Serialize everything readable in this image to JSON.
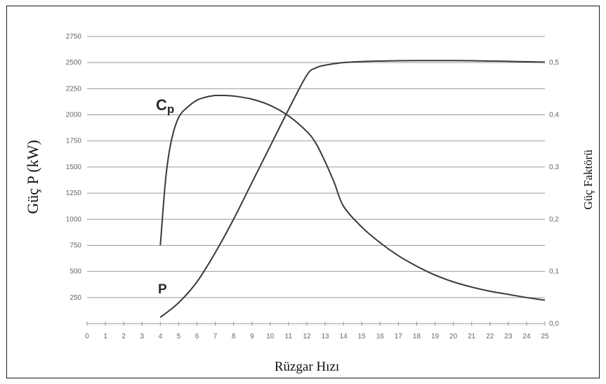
{
  "chart_data": {
    "type": "line",
    "xlabel": "Rüzgar Hızı",
    "ylabel_left": "Güç  P (kW)",
    "ylabel_right": "Güç Faktörü",
    "xlim": [
      0,
      25
    ],
    "x_ticks": [
      0,
      1,
      2,
      3,
      4,
      5,
      6,
      7,
      8,
      9,
      10,
      11,
      12,
      13,
      14,
      15,
      16,
      17,
      18,
      19,
      20,
      21,
      22,
      23,
      24,
      25
    ],
    "ylim_left": [
      0,
      2750
    ],
    "y_ticks_left": [
      250,
      500,
      750,
      1000,
      1250,
      1500,
      1750,
      2000,
      2250,
      2500,
      2750
    ],
    "ylim_right": [
      0,
      0.55
    ],
    "y_ticks_right": [
      "0,0",
      "0,1",
      "0,2",
      "0,3",
      "0,4",
      "0,5"
    ],
    "y_ticks_right_values": [
      0,
      0.1,
      0.2,
      0.3,
      0.4,
      0.5
    ],
    "grid": "horizontal",
    "series": [
      {
        "name": "P",
        "axis": "left",
        "x": [
          4,
          5,
          6,
          7,
          8,
          9,
          10,
          11,
          12,
          12.5,
          13,
          14,
          15,
          16,
          17,
          18,
          19,
          20,
          21,
          22,
          23,
          24,
          25
        ],
        "values": [
          60,
          200,
          400,
          680,
          1000,
          1350,
          1700,
          2050,
          2380,
          2450,
          2475,
          2500,
          2510,
          2515,
          2518,
          2520,
          2520,
          2520,
          2518,
          2515,
          2512,
          2508,
          2505
        ]
      },
      {
        "name": "Cp",
        "axis": "right",
        "x": [
          4,
          4.3,
          4.6,
          5,
          5.5,
          6,
          6.5,
          7,
          7.5,
          8,
          9,
          10,
          11,
          12,
          12.5,
          13,
          13.5,
          14,
          15,
          16,
          17,
          18,
          19,
          20,
          21,
          22,
          23,
          24,
          25
        ],
        "values": [
          0.15,
          0.28,
          0.35,
          0.395,
          0.415,
          0.428,
          0.434,
          0.437,
          0.437,
          0.436,
          0.43,
          0.418,
          0.398,
          0.368,
          0.345,
          0.31,
          0.27,
          0.225,
          0.185,
          0.155,
          0.13,
          0.11,
          0.093,
          0.08,
          0.07,
          0.062,
          0.056,
          0.05,
          0.045
        ]
      }
    ]
  }
}
